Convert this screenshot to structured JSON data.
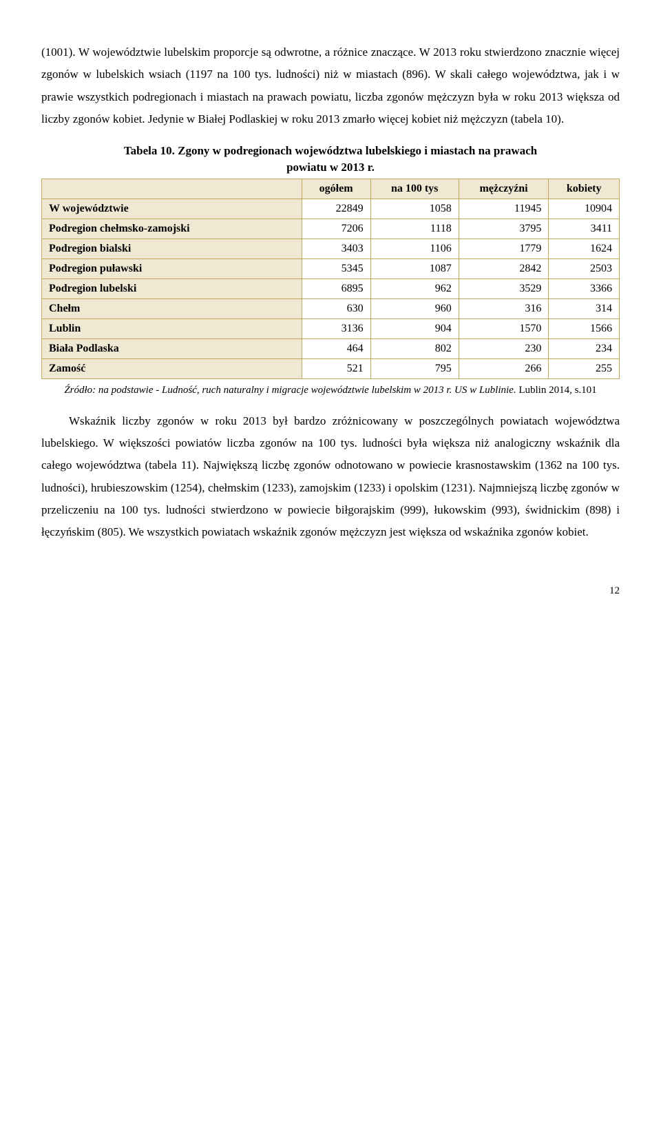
{
  "para1": "(1001). W województwie lubelskim proporcje są odwrotne, a różnice znaczące. W 2013 roku stwierdzono znacznie więcej zgonów w lubelskich wsiach (1197 na 100 tys. ludności) niż w miastach (896). W skali całego województwa, jak i w prawie wszystkich podregionach i miastach na prawach powiatu, liczba zgonów mężczyzn była w roku 2013 większa od liczby zgonów kobiet. Jedynie w Białej Podlaskiej w roku 2013 zmarło więcej kobiet niż mężczyzn (tabela 10).",
  "table": {
    "title_line1": "Tabela 10. Zgony w podregionach województwa lubelskiego i miastach na prawach",
    "title_line2": "powiatu w 2013 r.",
    "columns": [
      "",
      "ogółem",
      "na 100 tys",
      "mężczyźni",
      "kobiety"
    ],
    "rows": [
      [
        "W województwie",
        "22849",
        "1058",
        "11945",
        "10904"
      ],
      [
        "Podregion chełmsko-zamojski",
        "7206",
        "1118",
        "3795",
        "3411"
      ],
      [
        "Podregion bialski",
        "3403",
        "1106",
        "1779",
        "1624"
      ],
      [
        "Podregion puławski",
        "5345",
        "1087",
        "2842",
        "2503"
      ],
      [
        "Podregion lubelski",
        "6895",
        "962",
        "3529",
        "3366"
      ],
      [
        "Chełm",
        "630",
        "960",
        "316",
        "314"
      ],
      [
        "Lublin",
        "3136",
        "904",
        "1570",
        "1566"
      ],
      [
        "Biała Podlaska",
        "464",
        "802",
        "230",
        "234"
      ],
      [
        "Zamość",
        "521",
        "795",
        "266",
        "255"
      ]
    ],
    "header_bg": "#efe9d3",
    "border_color": "#bfa85a"
  },
  "source_italic": "Źródło: na podstawie - Ludność, ruch naturalny i migracje województwie lubelskim w 2013 r. US w Lublinie.",
  "source_plain": " Lublin 2014, s.101",
  "para2": "Wskaźnik liczby zgonów w roku 2013 był bardzo zróżnicowany w poszczególnych powiatach województwa lubelskiego. W większości powiatów liczba zgonów na 100 tys. ludności była większa niż analogiczny wskaźnik dla całego województwa (tabela 11). Największą liczbę zgonów odnotowano w powiecie krasnostawskim (1362 na 100 tys. ludności), hrubieszowskim (1254), chełmskim (1233), zamojskim (1233) i opolskim (1231). Najmniejszą liczbę zgonów w przeliczeniu na 100  tys. ludności stwierdzono w powiecie biłgorajskim (999), łukowskim (993), świdnickim (898) i łęczyńskim (805). We wszystkich powiatach wskaźnik zgonów mężczyzn jest większa od wskaźnika zgonów kobiet.",
  "page_number": "12"
}
